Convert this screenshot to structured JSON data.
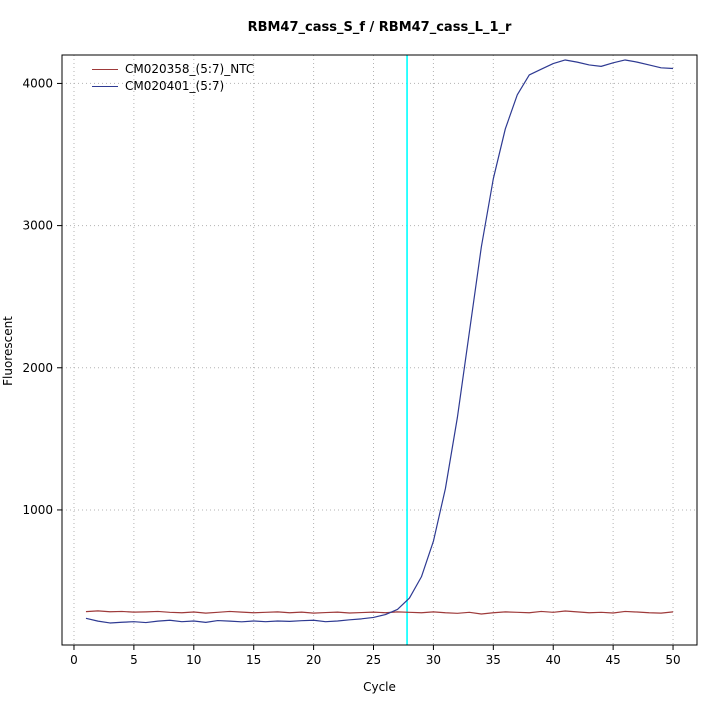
{
  "chart_data": {
    "type": "line",
    "title": "RBM47_cass_S_f / RBM47_cass_L_1_r",
    "xlabel": "Cycle",
    "ylabel": "Fluorescent",
    "xlim": [
      -1,
      52
    ],
    "ylim": [
      50,
      4200
    ],
    "xticks": [
      0,
      5,
      10,
      15,
      20,
      25,
      30,
      35,
      40,
      45,
      50
    ],
    "yticks": [
      1000,
      2000,
      3000,
      4000
    ],
    "grid": "dotted",
    "grid_color": "#b3b3b3",
    "border_color": "#000000",
    "legend_position": "top-left",
    "threshold_line": {
      "x": 27.8,
      "color": "#00ffff"
    },
    "x": [
      1,
      2,
      3,
      4,
      5,
      6,
      7,
      8,
      9,
      10,
      11,
      12,
      13,
      14,
      15,
      16,
      17,
      18,
      19,
      20,
      21,
      22,
      23,
      24,
      25,
      26,
      27,
      28,
      29,
      30,
      31,
      32,
      33,
      34,
      35,
      36,
      37,
      38,
      39,
      40,
      41,
      42,
      43,
      44,
      45,
      46,
      47,
      48,
      49,
      50
    ],
    "series": [
      {
        "name": "CM020358_(5:7)_NTC",
        "color": "#9e3a3a",
        "values": [
          285,
          290,
          284,
          286,
          281,
          283,
          286,
          280,
          277,
          282,
          274,
          280,
          286,
          281,
          277,
          280,
          283,
          277,
          281,
          274,
          278,
          281,
          275,
          278,
          281,
          277,
          283,
          280,
          277,
          283,
          277,
          273,
          280,
          268,
          277,
          283,
          280,
          277,
          286,
          280,
          289,
          283,
          277,
          280,
          275,
          286,
          282,
          277,
          274,
          283
        ]
      },
      {
        "name": "CM020401_(5:7)",
        "color": "#2e3a92",
        "values": [
          238,
          218,
          205,
          210,
          214,
          208,
          218,
          224,
          214,
          219,
          209,
          222,
          218,
          213,
          219,
          214,
          219,
          216,
          221,
          224,
          214,
          219,
          227,
          234,
          244,
          264,
          300,
          380,
          530,
          780,
          1150,
          1650,
          2250,
          2850,
          3330,
          3680,
          3920,
          4060,
          4100,
          4140,
          4165,
          4150,
          4130,
          4120,
          4145,
          4165,
          4150,
          4130,
          4110,
          4105
        ]
      }
    ]
  }
}
